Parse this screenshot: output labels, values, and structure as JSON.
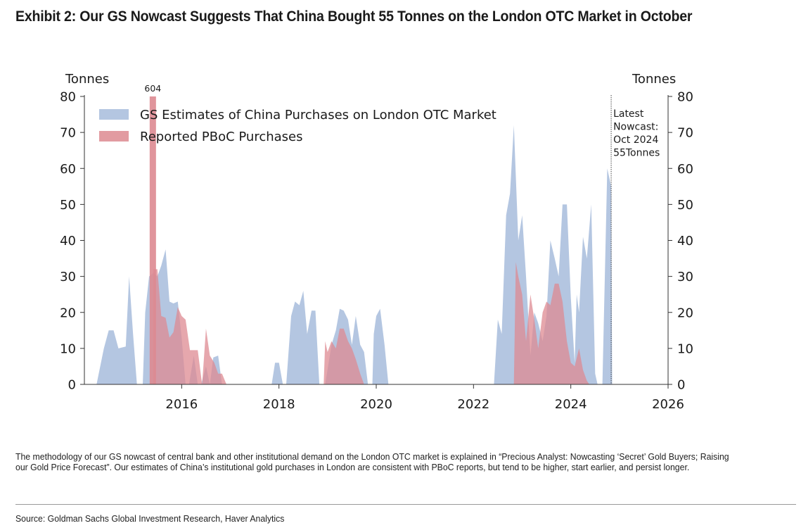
{
  "title": "Exhibit 2: Our GS Nowcast Suggests That China Bought 55 Tonnes on the London OTC Market in October",
  "footnote": "The methodology of our GS nowcast of central bank and other institutional demand on the London OTC market is explained in “Precious Analyst: Nowcasting ‘Secret’ Gold Buyers; Raising our Gold Price Forecast”. Our estimates of China’s institutional gold purchases in London are consistent with PBoC reports, but tend to be higher, start earlier, and persist longer.",
  "source": "Source: Goldman Sachs Global Investment Research, Haver Analytics",
  "chart_data": {
    "type": "area",
    "ylabel_left": "Tonnes",
    "ylabel_right": "Tonnes",
    "ylim": [
      0,
      80
    ],
    "yticks": [
      0,
      10,
      20,
      30,
      40,
      50,
      60,
      70,
      80
    ],
    "xlim": [
      2014.0,
      2026.0
    ],
    "xticks": [
      2016,
      2018,
      2020,
      2022,
      2024,
      2026
    ],
    "grid": false,
    "legend_position": "top-left",
    "peak_label": {
      "text": "604",
      "x": 2015.4
    },
    "annotation": {
      "lines": [
        "Latest",
        "Nowcast:",
        "Oct 2024",
        "55Tonnes"
      ],
      "x": 2024.83
    },
    "series": [
      {
        "name": "GS Estimates of China Purchases on London OTC Market",
        "color": "#a7bcdc",
        "points": [
          [
            2014.25,
            0
          ],
          [
            2014.4,
            10
          ],
          [
            2014.5,
            15
          ],
          [
            2014.6,
            15
          ],
          [
            2014.7,
            10
          ],
          [
            2014.85,
            10.5
          ],
          [
            2014.92,
            30
          ],
          [
            2015.0,
            14
          ],
          [
            2015.08,
            0
          ],
          [
            2015.2,
            0
          ],
          [
            2015.25,
            20
          ],
          [
            2015.33,
            30
          ],
          [
            2015.42,
            31
          ],
          [
            2015.5,
            30
          ],
          [
            2015.58,
            33
          ],
          [
            2015.67,
            37.5
          ],
          [
            2015.75,
            23
          ],
          [
            2015.83,
            22.5
          ],
          [
            2015.92,
            23
          ],
          [
            2016.0,
            13
          ],
          [
            2016.08,
            0
          ],
          [
            2016.15,
            0
          ],
          [
            2016.25,
            8
          ],
          [
            2016.33,
            0
          ],
          [
            2016.4,
            0
          ],
          [
            2016.5,
            5
          ],
          [
            2016.58,
            0
          ],
          [
            2016.65,
            7.5
          ],
          [
            2016.75,
            8
          ],
          [
            2016.83,
            0
          ],
          [
            2017.85,
            0
          ],
          [
            2017.92,
            6
          ],
          [
            2018.0,
            6
          ],
          [
            2018.08,
            0
          ],
          [
            2018.15,
            0
          ],
          [
            2018.25,
            19
          ],
          [
            2018.33,
            23
          ],
          [
            2018.42,
            22
          ],
          [
            2018.5,
            26
          ],
          [
            2018.58,
            14
          ],
          [
            2018.67,
            20.5
          ],
          [
            2018.75,
            20.5
          ],
          [
            2018.83,
            0
          ],
          [
            2018.95,
            0
          ],
          [
            2019.08,
            11
          ],
          [
            2019.17,
            15
          ],
          [
            2019.25,
            21
          ],
          [
            2019.33,
            20.5
          ],
          [
            2019.42,
            18
          ],
          [
            2019.5,
            11
          ],
          [
            2019.58,
            19
          ],
          [
            2019.67,
            11
          ],
          [
            2019.75,
            9
          ],
          [
            2019.83,
            0
          ],
          [
            2019.92,
            0
          ],
          [
            2019.95,
            14
          ],
          [
            2020.0,
            19
          ],
          [
            2020.08,
            21
          ],
          [
            2020.17,
            11
          ],
          [
            2020.25,
            0
          ],
          [
            2022.42,
            0
          ],
          [
            2022.5,
            18
          ],
          [
            2022.58,
            14
          ],
          [
            2022.67,
            47
          ],
          [
            2022.75,
            53
          ],
          [
            2022.83,
            72
          ],
          [
            2022.92,
            40
          ],
          [
            2023.0,
            47
          ],
          [
            2023.08,
            30
          ],
          [
            2023.17,
            8
          ],
          [
            2023.25,
            20
          ],
          [
            2023.33,
            17
          ],
          [
            2023.42,
            12
          ],
          [
            2023.5,
            19
          ],
          [
            2023.58,
            40
          ],
          [
            2023.67,
            35
          ],
          [
            2023.75,
            30
          ],
          [
            2023.83,
            50
          ],
          [
            2023.92,
            50
          ],
          [
            2024.0,
            24
          ],
          [
            2024.08,
            6
          ],
          [
            2024.12,
            25
          ],
          [
            2024.17,
            20
          ],
          [
            2024.25,
            41
          ],
          [
            2024.33,
            35
          ],
          [
            2024.42,
            50
          ],
          [
            2024.5,
            3
          ],
          [
            2024.55,
            0
          ],
          [
            2024.65,
            0
          ],
          [
            2024.75,
            60
          ],
          [
            2024.83,
            55
          ],
          [
            2024.85,
            0
          ]
        ]
      },
      {
        "name": "Reported PBoC Purchases",
        "color": "#dd8a91",
        "points": [
          [
            2015.42,
            0
          ],
          [
            2015.42,
            32
          ],
          [
            2015.5,
            32
          ],
          [
            2015.58,
            19
          ],
          [
            2015.67,
            18.5
          ],
          [
            2015.75,
            13
          ],
          [
            2015.83,
            14.5
          ],
          [
            2015.92,
            21.5
          ],
          [
            2016.0,
            19
          ],
          [
            2016.08,
            18
          ],
          [
            2016.17,
            9.5
          ],
          [
            2016.25,
            9.5
          ],
          [
            2016.33,
            9.5
          ],
          [
            2016.42,
            0
          ],
          [
            2016.5,
            15.5
          ],
          [
            2016.58,
            8
          ],
          [
            2016.67,
            6
          ],
          [
            2016.75,
            3
          ],
          [
            2016.83,
            3
          ],
          [
            2016.92,
            0
          ],
          [
            2018.92,
            0
          ],
          [
            2018.95,
            12
          ],
          [
            2019.0,
            9
          ],
          [
            2019.08,
            12
          ],
          [
            2019.17,
            10
          ],
          [
            2019.25,
            15.5
          ],
          [
            2019.33,
            15.5
          ],
          [
            2019.42,
            12
          ],
          [
            2019.5,
            10
          ],
          [
            2019.58,
            7
          ],
          [
            2019.67,
            3
          ],
          [
            2019.75,
            0
          ],
          [
            2022.83,
            0
          ],
          [
            2022.87,
            34
          ],
          [
            2022.92,
            30
          ],
          [
            2023.0,
            25
          ],
          [
            2023.08,
            12
          ],
          [
            2023.17,
            25
          ],
          [
            2023.25,
            18
          ],
          [
            2023.33,
            10
          ],
          [
            2023.42,
            20
          ],
          [
            2023.5,
            23
          ],
          [
            2023.58,
            22
          ],
          [
            2023.67,
            28
          ],
          [
            2023.75,
            28
          ],
          [
            2023.83,
            23
          ],
          [
            2023.92,
            12
          ],
          [
            2024.0,
            6
          ],
          [
            2024.08,
            5
          ],
          [
            2024.17,
            10
          ],
          [
            2024.25,
            4
          ],
          [
            2024.33,
            1
          ],
          [
            2024.38,
            0
          ]
        ]
      }
    ]
  }
}
